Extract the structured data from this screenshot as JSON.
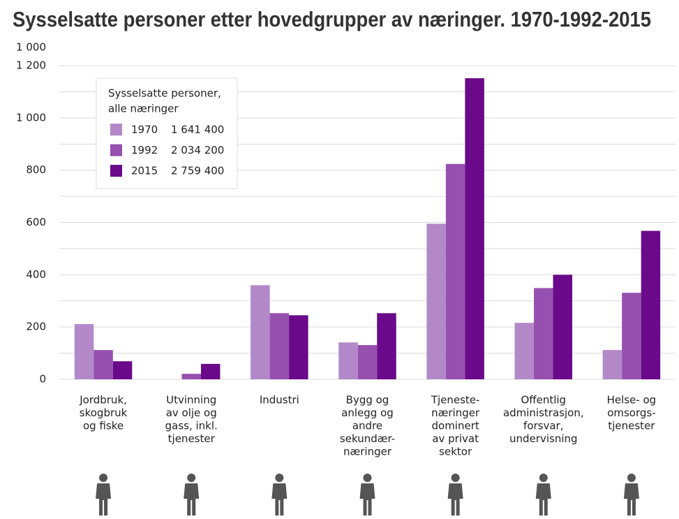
{
  "chart_data": {
    "type": "bar",
    "title": "Sysselsatte personer etter hovedgrupper av næringer. 1970-1992-2015",
    "y_unit_label": "1 000",
    "categories": [
      [
        "Jordbruk,",
        "skogbruk",
        "og fiske"
      ],
      [
        "Utvinning",
        "av olje og",
        "gass, inkl.",
        "tjenester"
      ],
      [
        "Industri"
      ],
      [
        "Bygg og",
        "anlegg og",
        "andre",
        "sekundær-",
        "næringer"
      ],
      [
        "Tjeneste-",
        "næringer",
        "dominert",
        "av privat",
        "sektor"
      ],
      [
        "Offentlig",
        "administrasjon,",
        "forsvar,",
        "undervisning"
      ],
      [
        "Helse- og",
        "omsorgs-",
        "tjenester"
      ]
    ],
    "series": [
      {
        "name": "1970",
        "total": "1 641 400",
        "color": "#b388c9",
        "values": [
          211,
          0,
          360,
          141,
          595,
          216,
          112
        ]
      },
      {
        "name": "1992",
        "total": "2 034 200",
        "color": "#9650b0",
        "values": [
          112,
          21,
          253,
          131,
          824,
          349,
          331
        ]
      },
      {
        "name": "2015",
        "total": "2 759 400",
        "color": "#6a0a8a",
        "values": [
          69,
          59,
          245,
          253,
          1152,
          400,
          568
        ]
      }
    ],
    "legend_title": [
      "Sysselsatte personer,",
      "alle næringer"
    ],
    "ylim": [
      0,
      1200
    ],
    "yticks": [
      0,
      200,
      400,
      600,
      800,
      {
        "value": 1000,
        "label": "1 000"
      },
      {
        "value": 1200,
        "label": "1 200"
      }
    ],
    "minor_yticks": [
      100,
      300,
      500,
      700,
      900,
      1100
    ],
    "grid": true,
    "legend_position": "upper-left"
  }
}
